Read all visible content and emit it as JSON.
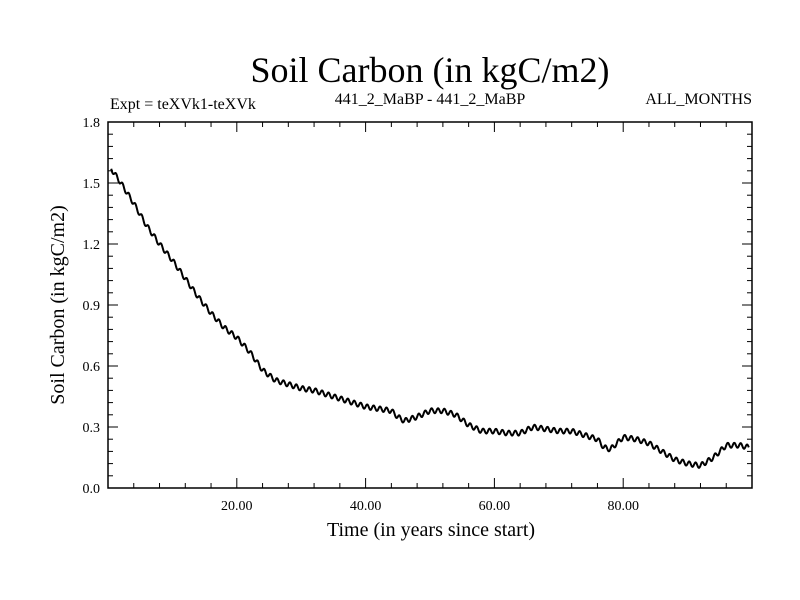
{
  "chart_data": {
    "type": "line",
    "title": "Soil Carbon (in kgC/m2)",
    "left_subtitle": "Expt = teXVk1-teXVk",
    "center_subtitle": "441_2_MaBP - 441_2_MaBP",
    "right_subtitle": "ALL_MONTHS",
    "xlabel": "Time (in years since start)",
    "ylabel": "Soil Carbon (in kgC/m2)",
    "xlim": [
      0,
      100
    ],
    "ylim": [
      0.0,
      1.8
    ],
    "x_ticks": [
      20,
      40,
      60,
      80
    ],
    "x_tick_labels": [
      "20.00",
      "40.00",
      "60.00",
      "80.00"
    ],
    "y_ticks": [
      0.0,
      0.3,
      0.6,
      0.9,
      1.2,
      1.5,
      1.8
    ],
    "y_tick_labels": [
      "0.0",
      "0.3",
      "0.6",
      "0.9",
      "1.2",
      "1.5",
      "1.8"
    ],
    "grid": false,
    "seasonal_amplitude": 0.012,
    "series": [
      {
        "name": "Soil Carbon",
        "x": [
          0.5,
          2,
          4,
          6,
          8,
          10,
          12,
          14,
          16,
          18,
          20,
          22,
          24,
          26,
          28,
          30,
          32,
          34,
          36,
          38,
          40,
          42,
          44,
          45,
          46,
          48,
          50,
          52,
          54,
          56,
          58,
          60,
          62,
          64,
          66,
          68,
          70,
          72,
          74,
          76,
          77,
          78,
          80,
          82,
          84,
          86,
          88,
          90,
          92,
          94,
          96,
          98,
          99.5
        ],
        "values": [
          1.57,
          1.5,
          1.4,
          1.29,
          1.2,
          1.12,
          1.03,
          0.94,
          0.86,
          0.79,
          0.74,
          0.67,
          0.58,
          0.53,
          0.51,
          0.49,
          0.48,
          0.46,
          0.44,
          0.42,
          0.4,
          0.39,
          0.38,
          0.35,
          0.33,
          0.35,
          0.38,
          0.38,
          0.36,
          0.31,
          0.28,
          0.28,
          0.27,
          0.27,
          0.3,
          0.29,
          0.28,
          0.28,
          0.26,
          0.24,
          0.2,
          0.19,
          0.25,
          0.24,
          0.22,
          0.18,
          0.14,
          0.12,
          0.11,
          0.15,
          0.21,
          0.21,
          0.2
        ]
      }
    ]
  }
}
